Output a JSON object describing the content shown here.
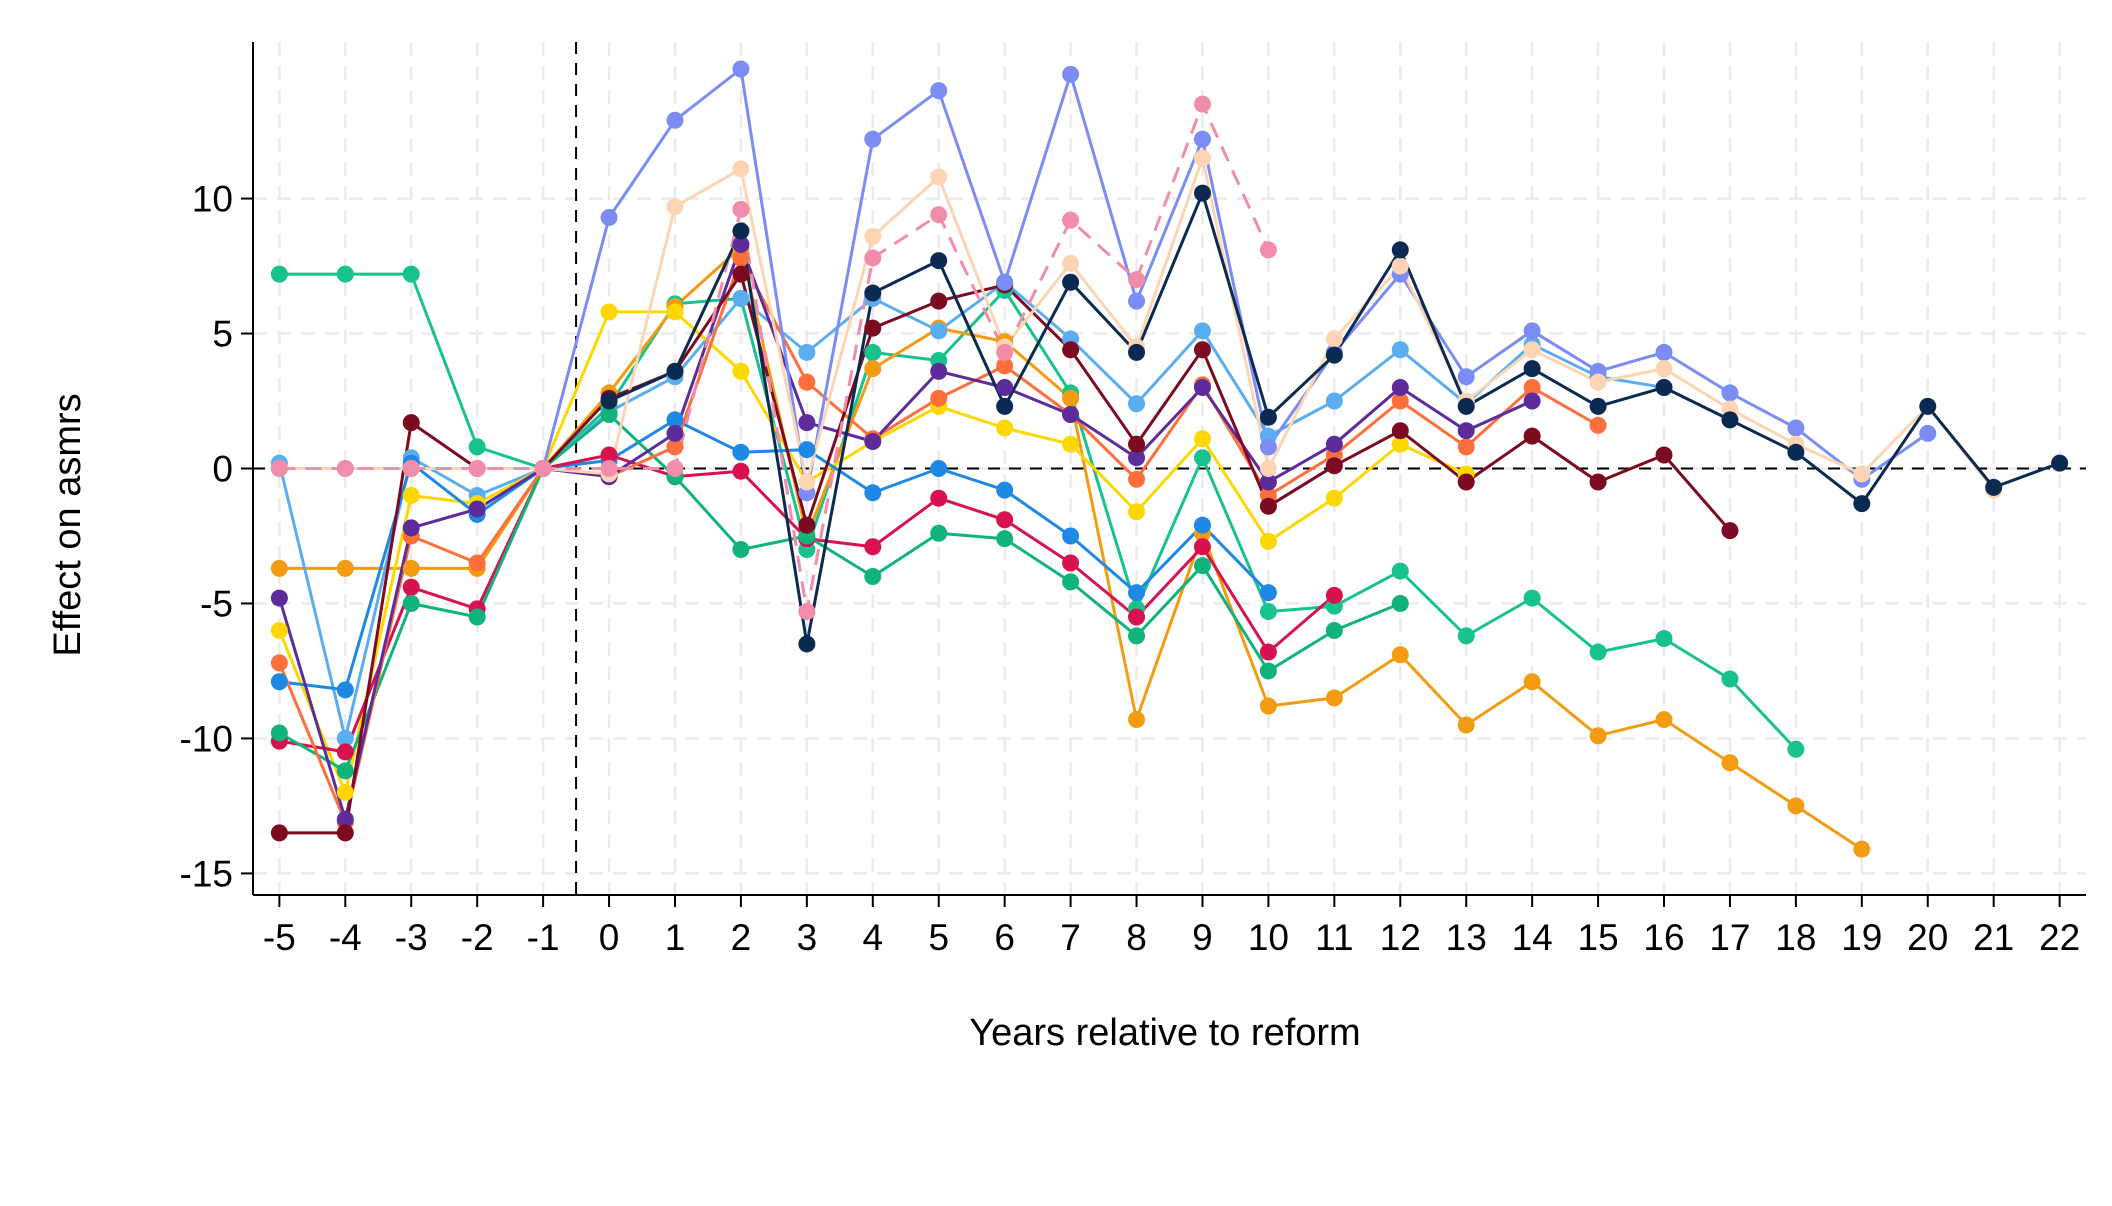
{
  "chart_data": {
    "type": "line",
    "xlabel": "Years relative to reform",
    "ylabel": "Effect on asmrs",
    "xlim": [
      -5.4,
      22.4
    ],
    "ylim": [
      -15.8,
      15.8
    ],
    "xticks": [
      -5,
      -4,
      -3,
      -2,
      -1,
      0,
      1,
      2,
      3,
      4,
      5,
      6,
      7,
      8,
      9,
      10,
      11,
      12,
      13,
      14,
      15,
      16,
      17,
      18,
      19,
      20,
      21,
      22
    ],
    "xtick_labels": [
      "-5",
      "-4",
      "-3",
      "-2",
      "-1",
      "0",
      "1",
      "2",
      "3",
      "4",
      "5",
      "6",
      "7",
      "8",
      "9",
      "10",
      "11",
      "12",
      "13",
      "14",
      "15",
      "16",
      "17",
      "18",
      "19",
      "20",
      "21",
      "22"
    ],
    "yticks": [
      -15,
      -10,
      -5,
      0,
      5,
      10
    ],
    "ytick_labels": [
      "-15",
      "-10",
      "-5",
      "0",
      "5",
      "10"
    ],
    "grid": true,
    "reference_lines": {
      "horizontal_y": 0,
      "vertical_x": -0.5
    },
    "series": [
      {
        "color": "#17c28e",
        "dashed": false,
        "x": [
          -5,
          -4,
          -3,
          -2,
          -1,
          0,
          1,
          2,
          3,
          4,
          5,
          6,
          7,
          8,
          9,
          10,
          11,
          12,
          13,
          14,
          15,
          16,
          17,
          18
        ],
        "y": [
          7.2,
          7.2,
          7.2,
          0.8,
          0,
          2.3,
          6.1,
          6.3,
          -3.0,
          4.3,
          4.0,
          6.6,
          2.8,
          -5.2,
          0.4,
          -5.3,
          -5.1,
          -3.8,
          -6.2,
          -4.8,
          -6.8,
          -6.3,
          -7.8,
          -10.4
        ]
      },
      {
        "color": "#f39c12",
        "dashed": false,
        "x": [
          -5,
          -4,
          -3,
          -2,
          -1,
          0,
          1,
          2,
          3,
          4,
          5,
          6,
          7,
          8,
          9,
          10,
          11,
          12,
          13,
          14,
          15,
          16,
          17,
          18,
          19
        ],
        "y": [
          -3.7,
          -3.7,
          -3.7,
          -3.7,
          0,
          2.8,
          6.0,
          8.2,
          -2.5,
          3.7,
          5.2,
          4.7,
          2.6,
          -9.3,
          -2.4,
          -8.8,
          -8.5,
          -6.9,
          -9.5,
          -7.9,
          -9.9,
          -9.3,
          -10.9,
          -12.5,
          -14.1
        ]
      },
      {
        "color": "#5aaef0",
        "dashed": false,
        "x": [
          -5,
          -4,
          -3,
          -2,
          -1,
          0,
          1,
          2,
          3,
          4,
          5,
          6,
          7,
          8,
          9,
          10,
          11,
          12,
          13,
          14,
          15,
          16
        ],
        "y": [
          0.2,
          -10.0,
          0.4,
          -1.0,
          0,
          2.1,
          3.4,
          6.3,
          4.3,
          6.3,
          5.1,
          6.9,
          4.8,
          2.4,
          5.1,
          1.2,
          2.5,
          4.4,
          2.4,
          4.6,
          3.4,
          3.0
        ]
      },
      {
        "color": "#ffd700",
        "dashed": false,
        "x": [
          -5,
          -4,
          -3,
          -2,
          -1,
          0,
          1,
          2,
          3,
          4,
          5,
          6,
          7,
          8,
          9,
          10,
          11,
          12,
          13
        ],
        "y": [
          -6.0,
          -12.0,
          -1.0,
          -1.3,
          0,
          5.8,
          5.8,
          3.6,
          -0.5,
          1.0,
          2.3,
          1.5,
          0.9,
          -1.6,
          1.1,
          -2.7,
          -1.1,
          0.9,
          -0.2
        ]
      },
      {
        "color": "#1e88e5",
        "dashed": false,
        "x": [
          -5,
          -4,
          -3,
          -2,
          -1,
          0,
          1,
          2,
          3,
          4,
          5,
          6,
          7,
          8,
          9,
          10
        ],
        "y": [
          -7.9,
          -8.2,
          0.2,
          -1.7,
          0,
          0.3,
          1.8,
          0.6,
          0.7,
          -0.9,
          0.0,
          -0.8,
          -2.5,
          -4.6,
          -2.1,
          -4.6
        ]
      },
      {
        "color": "#d6134f",
        "dashed": false,
        "x": [
          -5,
          -4,
          -3,
          -2,
          -1,
          0,
          1,
          2,
          3,
          4,
          5,
          6,
          7,
          8,
          9,
          10,
          11
        ],
        "y": [
          -10.1,
          -10.5,
          -4.4,
          -5.2,
          0,
          0.5,
          -0.3,
          -0.1,
          -2.6,
          -2.9,
          -1.1,
          -1.9,
          -3.5,
          -5.5,
          -2.9,
          -6.8,
          -4.7
        ]
      },
      {
        "color": "#10b37a",
        "dashed": false,
        "x": [
          -5,
          -4,
          -3,
          -2,
          -1,
          0,
          1,
          2,
          3,
          4,
          5,
          6,
          7,
          8,
          9,
          10,
          11,
          12
        ],
        "y": [
          -9.8,
          -11.2,
          -5.0,
          -5.5,
          0,
          2.0,
          -0.3,
          -3.0,
          -2.5,
          -4.0,
          -2.4,
          -2.6,
          -4.2,
          -6.2,
          -3.6,
          -7.5,
          -6.0,
          -5.0
        ]
      },
      {
        "color": "#ff6f3c",
        "dashed": false,
        "x": [
          -5,
          -4,
          -3,
          -2,
          -1,
          0,
          1,
          2,
          3,
          4,
          5,
          6,
          7,
          8,
          9,
          10,
          11,
          12,
          13,
          14,
          15
        ],
        "y": [
          -7.2,
          -13.1,
          -2.5,
          -3.5,
          0,
          -0.3,
          0.8,
          7.8,
          3.2,
          1.1,
          2.6,
          3.8,
          2.0,
          -0.4,
          3.1,
          -1.0,
          0.5,
          2.5,
          0.8,
          3.0,
          1.6
        ]
      },
      {
        "color": "#5b2c9a",
        "dashed": false,
        "x": [
          -5,
          -4,
          -3,
          -2,
          -1,
          0,
          1,
          2,
          3,
          4,
          5,
          6,
          7,
          8,
          9,
          10,
          11,
          12,
          13,
          14
        ],
        "y": [
          -4.8,
          -13.0,
          -2.2,
          -1.5,
          0,
          -0.3,
          1.3,
          8.3,
          1.7,
          1.0,
          3.6,
          3.0,
          2.0,
          0.4,
          3.0,
          -0.5,
          0.9,
          3.0,
          1.4,
          2.5
        ]
      },
      {
        "color": "#7c0a20",
        "dashed": false,
        "x": [
          -5,
          -4,
          -3,
          -2,
          -1,
          0,
          1,
          2,
          3,
          4,
          5,
          6,
          7,
          8,
          9,
          10,
          11,
          12,
          13,
          14,
          15,
          16,
          17
        ],
        "y": [
          -13.5,
          -13.5,
          1.7,
          0.0,
          0,
          2.6,
          3.6,
          7.2,
          -2.1,
          5.2,
          6.2,
          6.8,
          4.4,
          0.9,
          4.4,
          -1.4,
          0.1,
          1.4,
          -0.5,
          1.2,
          -0.5,
          0.5,
          -2.3
        ]
      },
      {
        "color": "#7b8cf5",
        "dashed": false,
        "x": [
          -5,
          -4,
          -3,
          -2,
          -1,
          0,
          1,
          2,
          3,
          4,
          5,
          6,
          7,
          8,
          9,
          10,
          11,
          12,
          13,
          14,
          15,
          16,
          17,
          18,
          19,
          20
        ],
        "y": [
          0.0,
          0.0,
          0.0,
          0.0,
          0,
          9.3,
          12.9,
          14.8,
          -0.9,
          12.2,
          14.0,
          6.9,
          14.6,
          6.2,
          12.2,
          0.8,
          4.3,
          7.2,
          3.4,
          5.1,
          3.6,
          4.3,
          2.8,
          1.5,
          -0.4,
          1.3
        ]
      },
      {
        "color": "#fdd5b4",
        "dashed": false,
        "x": [
          -5,
          -4,
          -3,
          -2,
          -1,
          0,
          1,
          2,
          3,
          4,
          5,
          6,
          7,
          8,
          9,
          10,
          11,
          12,
          13,
          14,
          15,
          16,
          17,
          18,
          19,
          20,
          21
        ],
        "y": [
          0.0,
          0.0,
          0.0,
          0.0,
          0,
          -0.2,
          9.7,
          11.1,
          -0.5,
          8.6,
          10.8,
          4.5,
          7.6,
          4.5,
          11.5,
          0.0,
          4.8,
          7.5,
          2.5,
          4.4,
          3.2,
          3.7,
          2.2,
          0.9,
          -0.2,
          2.3,
          -0.8
        ]
      },
      {
        "color": "#f28cab",
        "dashed": true,
        "x": [
          -5,
          -4,
          -3,
          -2,
          -1,
          0,
          1,
          2,
          3,
          4,
          5,
          6,
          7,
          8,
          9,
          10
        ],
        "y": [
          0.0,
          0.0,
          0.0,
          0.0,
          0,
          0.0,
          0.0,
          9.6,
          -5.3,
          7.8,
          9.4,
          4.3,
          9.2,
          7.0,
          13.5,
          8.1
        ]
      },
      {
        "color": "#0b2a52",
        "dashed": false,
        "x": [
          0,
          1,
          2,
          3,
          4,
          5,
          6,
          7,
          8,
          9,
          10,
          11,
          12,
          13,
          14,
          15,
          16,
          17,
          18,
          19,
          20,
          21,
          22
        ],
        "y": [
          2.5,
          3.6,
          8.8,
          -6.5,
          6.5,
          7.7,
          2.3,
          6.9,
          4.3,
          10.2,
          1.9,
          4.2,
          8.1,
          2.3,
          3.7,
          2.3,
          3.0,
          1.8,
          0.6,
          -1.3,
          2.3,
          -0.7,
          0.2
        ]
      }
    ]
  }
}
